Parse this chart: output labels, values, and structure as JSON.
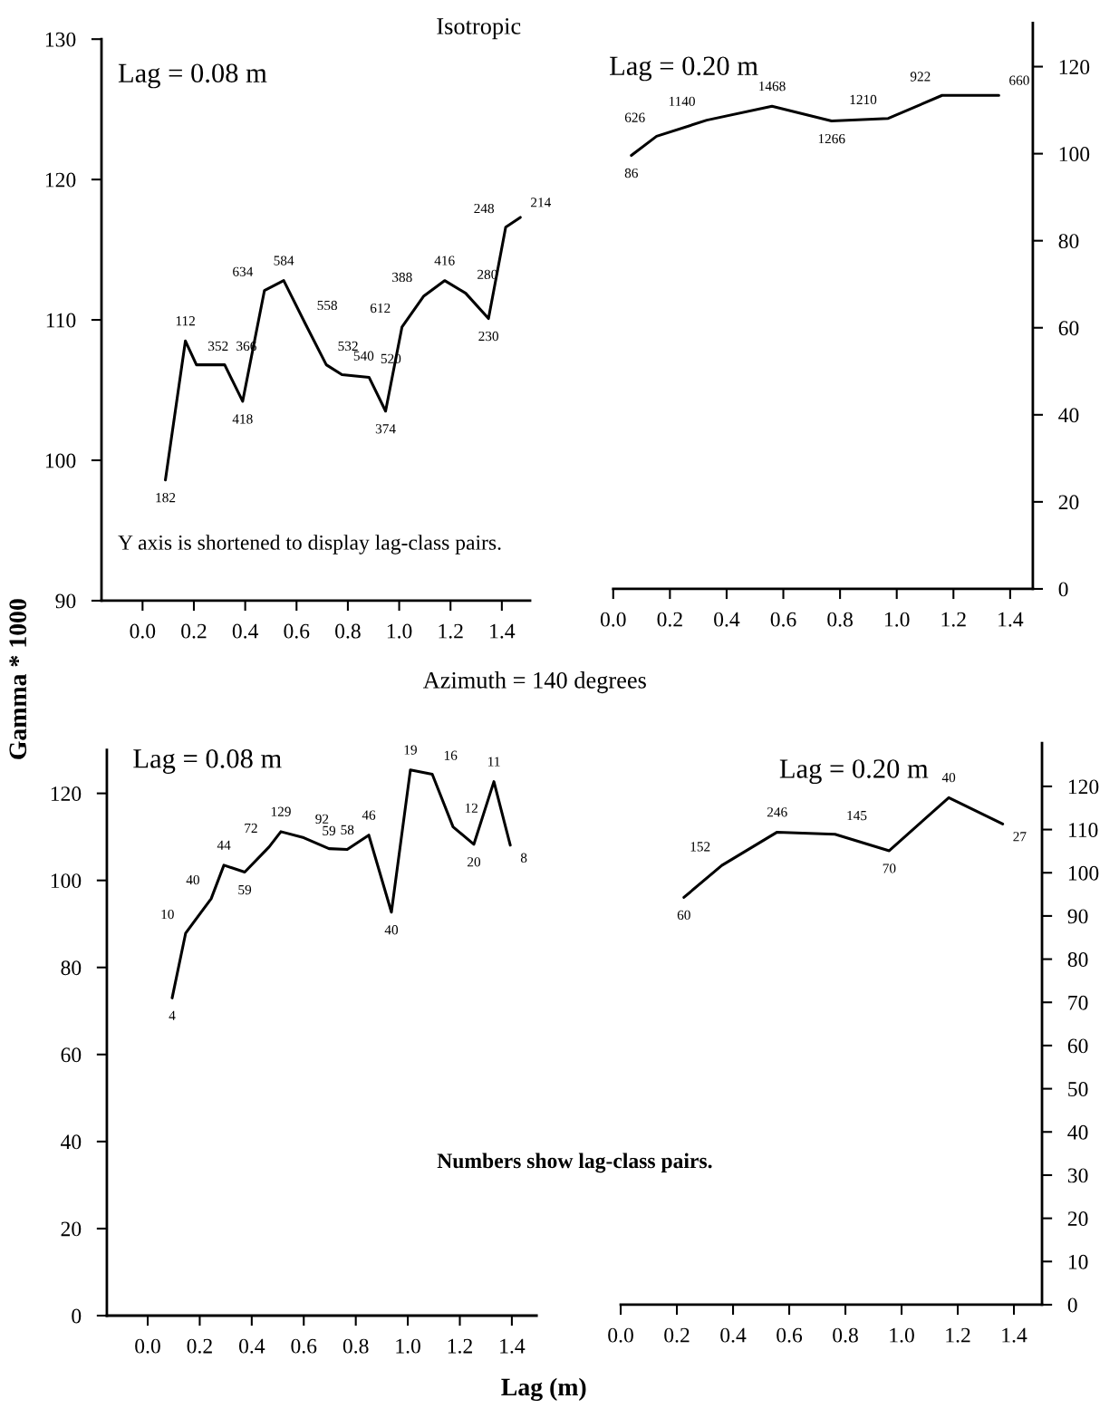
{
  "chart_data": [
    {
      "type": "line",
      "title": "Isotropic",
      "subtitle": "Lag = 0.08 m",
      "ylabel": "Gamma * 1000",
      "annotations": [
        "Y axis is shortened to display lag-class pairs.",
        {
          "text": "182",
          "x": 0.089,
          "y": 98.6
        },
        {
          "text": "112",
          "x": 0.167,
          "y": 108.5
        },
        {
          "text": "352",
          "x": 0.21,
          "y": 106.8
        },
        {
          "text": "366",
          "x": 0.32,
          "y": 106.8
        },
        {
          "text": "418",
          "x": 0.39,
          "y": 104.2
        },
        {
          "text": "634",
          "x": 0.475,
          "y": 112.1
        },
        {
          "text": "584",
          "x": 0.55,
          "y": 112.8
        },
        {
          "text": "558",
          "x": 0.635,
          "y": 109.7
        },
        {
          "text": "532",
          "x": 0.716,
          "y": 106.8
        },
        {
          "text": "540",
          "x": 0.777,
          "y": 106.1
        },
        {
          "text": "520",
          "x": 0.883,
          "y": 105.9
        },
        {
          "text": "374",
          "x": 0.947,
          "y": 103.5
        },
        {
          "text": "612",
          "x": 1.011,
          "y": 109.5
        },
        {
          "text": "388",
          "x": 1.096,
          "y": 111.7
        },
        {
          "text": "416",
          "x": 1.177,
          "y": 112.8
        },
        {
          "text": "280",
          "x": 1.259,
          "y": 111.9
        },
        {
          "text": "230",
          "x": 1.348,
          "y": 110.1
        },
        {
          "text": "248",
          "x": 1.415,
          "y": 116.6
        },
        {
          "text": "214",
          "x": 1.472,
          "y": 117.3
        }
      ],
      "x": [
        0.089,
        0.167,
        0.21,
        0.32,
        0.39,
        0.475,
        0.55,
        0.635,
        0.716,
        0.777,
        0.883,
        0.947,
        1.011,
        1.096,
        1.177,
        1.259,
        1.348,
        1.415,
        1.472
      ],
      "series": [
        {
          "color": "#000000",
          "values": [
            98.6,
            108.5,
            106.8,
            106.8,
            104.2,
            112.1,
            112.8,
            109.7,
            106.8,
            106.1,
            105.9,
            103.5,
            109.5,
            111.7,
            112.8,
            111.9,
            110.1,
            116.6,
            117.3
          ]
        }
      ],
      "xlim": [
        -0.16,
        1.51
      ],
      "ylim": [
        90,
        130
      ],
      "xticks": [
        {
          "value": 0,
          "label": "0.0"
        },
        {
          "value": 0.2,
          "label": "0.2"
        },
        {
          "value": 0.4,
          "label": "0.4"
        },
        {
          "value": 0.6,
          "label": "0.6"
        },
        {
          "value": 0.8,
          "label": "0.8"
        },
        {
          "value": 1.0,
          "label": "1.0"
        },
        {
          "value": 1.2,
          "label": "1.2"
        },
        {
          "value": 1.4,
          "label": "1.4"
        }
      ],
      "yticks": [
        90,
        100,
        110,
        120,
        130
      ]
    },
    {
      "type": "line",
      "subtitle": "Lag = 0.20 m",
      "annotations": [
        {
          "text": "86",
          "x": 0.064,
          "y": 99.6
        },
        {
          "text": "626",
          "x": 0.153,
          "y": 104.0
        },
        {
          "text": "1140",
          "x": 0.33,
          "y": 107.7
        },
        {
          "text": "1468",
          "x": 0.56,
          "y": 110.9
        },
        {
          "text": "1266",
          "x": 0.77,
          "y": 107.5
        },
        {
          "text": "1210",
          "x": 0.97,
          "y": 108.1
        },
        {
          "text": "922",
          "x": 1.16,
          "y": 113.4
        },
        {
          "text": "660",
          "x": 1.36,
          "y": 113.4
        }
      ],
      "x": [
        0.064,
        0.153,
        0.33,
        0.56,
        0.77,
        0.97,
        1.16,
        1.36
      ],
      "series": [
        {
          "color": "#000000",
          "values": [
            99.6,
            104.0,
            107.7,
            110.9,
            107.5,
            108.1,
            113.4,
            113.4
          ]
        }
      ],
      "xlim": [
        0,
        1.48
      ],
      "ylim": [
        0,
        130
      ],
      "xticks": [
        {
          "value": 0,
          "label": "0.0"
        },
        {
          "value": 0.2,
          "label": "0.2"
        },
        {
          "value": 0.4,
          "label": "0.4"
        },
        {
          "value": 0.6,
          "label": "0.6"
        },
        {
          "value": 0.8,
          "label": "0.8"
        },
        {
          "value": 1.0,
          "label": "1.0"
        },
        {
          "value": 1.2,
          "label": "1.2"
        },
        {
          "value": 1.4,
          "label": "1.4"
        }
      ],
      "yticks": [
        0,
        20,
        40,
        60,
        80,
        100,
        120
      ]
    },
    {
      "type": "line",
      "title": "Azimuth = 140 degrees",
      "subtitle": "Lag = 0.08 m",
      "xlabel": "Lag (m)",
      "annotations": [
        "Numbers show lag-class pairs.",
        {
          "text": "4",
          "x": 0.094,
          "y": 73
        },
        {
          "text": "10",
          "x": 0.146,
          "y": 87.9
        },
        {
          "text": "40",
          "x": 0.244,
          "y": 95.8
        },
        {
          "text": "44",
          "x": 0.293,
          "y": 103.5
        },
        {
          "text": "59",
          "x": 0.373,
          "y": 101.9
        },
        {
          "text": "72",
          "x": 0.467,
          "y": 107.7
        },
        {
          "text": "129",
          "x": 0.512,
          "y": 111.2
        },
        {
          "text": "92",
          "x": 0.6,
          "y": 109.8
        },
        {
          "text": "58",
          "x": 0.697,
          "y": 107.3
        },
        {
          "text": "59",
          "x": 0.767,
          "y": 107.1
        },
        {
          "text": "46",
          "x": 0.85,
          "y": 110.4
        },
        {
          "text": "40",
          "x": 0.937,
          "y": 92.7
        },
        {
          "text": "19",
          "x": 1.01,
          "y": 125.4
        },
        {
          "text": "16",
          "x": 1.094,
          "y": 124.4
        },
        {
          "text": "12",
          "x": 1.174,
          "y": 112.3
        },
        {
          "text": "20",
          "x": 1.254,
          "y": 108.3
        },
        {
          "text": "11",
          "x": 1.331,
          "y": 122.7
        },
        {
          "text": "8",
          "x": 1.394,
          "y": 108.1
        }
      ],
      "x": [
        0.094,
        0.146,
        0.244,
        0.293,
        0.373,
        0.467,
        0.512,
        0.6,
        0.697,
        0.767,
        0.85,
        0.937,
        1.01,
        1.094,
        1.174,
        1.254,
        1.331,
        1.394
      ],
      "series": [
        {
          "color": "#000000",
          "values": [
            73,
            87.9,
            95.8,
            103.5,
            101.9,
            107.7,
            111.2,
            109.8,
            107.3,
            107.1,
            110.4,
            92.7,
            125.4,
            124.4,
            112.3,
            108.3,
            122.7,
            108.1
          ]
        }
      ],
      "xlim": [
        -0.157,
        1.495
      ],
      "ylim": [
        0,
        130
      ],
      "xticks": [
        {
          "value": 0,
          "label": "0.0"
        },
        {
          "value": 0.2,
          "label": "0.2"
        },
        {
          "value": 0.4,
          "label": "0.4"
        },
        {
          "value": 0.6,
          "label": "0.6"
        },
        {
          "value": 0.8,
          "label": "0.8"
        },
        {
          "value": 1.0,
          "label": "1.0"
        },
        {
          "value": 1.2,
          "label": "1.2"
        },
        {
          "value": 1.4,
          "label": "1.4"
        }
      ],
      "yticks": [
        0,
        20,
        40,
        60,
        80,
        100,
        120
      ]
    },
    {
      "type": "line",
      "subtitle": "Lag = 0.20 m",
      "annotations": [
        {
          "text": "60",
          "x": 0.225,
          "y": 94.3
        },
        {
          "text": "152",
          "x": 0.36,
          "y": 101.7
        },
        {
          "text": "246",
          "x": 0.557,
          "y": 109.4
        },
        {
          "text": "145",
          "x": 0.763,
          "y": 108.9
        },
        {
          "text": "70",
          "x": 0.956,
          "y": 105.1
        },
        {
          "text": "40",
          "x": 1.168,
          "y": 117.4
        },
        {
          "text": "27",
          "x": 1.36,
          "y": 111.3
        }
      ],
      "x": [
        0.225,
        0.36,
        0.557,
        0.763,
        0.956,
        1.168,
        1.36
      ],
      "series": [
        {
          "color": "#000000",
          "values": [
            94.3,
            101.7,
            109.4,
            108.9,
            105.1,
            117.4,
            111.3
          ]
        }
      ],
      "xlim": [
        0,
        1.5
      ],
      "ylim": [
        0,
        130
      ],
      "xticks": [
        {
          "value": 0,
          "label": "0.0"
        },
        {
          "value": 0.2,
          "label": "0.2"
        },
        {
          "value": 0.4,
          "label": "0.4"
        },
        {
          "value": 0.6,
          "label": "0.6"
        },
        {
          "value": 0.8,
          "label": "0.8"
        },
        {
          "value": 1.0,
          "label": "1.0"
        },
        {
          "value": 1.2,
          "label": "1.2"
        },
        {
          "value": 1.4,
          "label": "1.4"
        }
      ],
      "yticks": [
        0,
        10,
        20,
        30,
        40,
        50,
        60,
        70,
        80,
        90,
        100,
        110,
        120
      ]
    }
  ]
}
